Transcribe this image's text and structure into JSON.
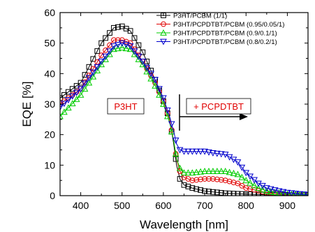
{
  "chart_data": {
    "type": "line",
    "xlabel": "Wavelength [nm]",
    "ylabel": "EQE [%]",
    "xlim": [
      350,
      950
    ],
    "ylim": [
      0,
      60
    ],
    "xticks": [
      400,
      500,
      600,
      700,
      800,
      900
    ],
    "yticks": [
      0,
      10,
      20,
      30,
      40,
      50,
      60
    ],
    "grid": false,
    "legend_position": "top-right",
    "annotations": [
      {
        "text": "P3HT",
        "color": "#e00000"
      },
      {
        "text": "+ PCPDTBT",
        "color": "#e00000"
      }
    ],
    "series": [
      {
        "name": "P3HT/PCBM (1/1)",
        "color": "#000000",
        "marker": "square",
        "x": [
          350,
          400,
          450,
          480,
          500,
          520,
          550,
          580,
          600,
          615,
          625,
          632,
          640,
          650,
          670,
          700,
          750,
          800,
          850,
          900,
          950
        ],
        "y": [
          32,
          37,
          50,
          55,
          55.5,
          54,
          47,
          38,
          31,
          25,
          17,
          10,
          5.5,
          3.5,
          2.5,
          1.5,
          0.8,
          0.5,
          0.3,
          0.2,
          0.1
        ]
      },
      {
        "name": "P3HT/PCPDTBT/PCBM (0.95/0.05/1)",
        "color": "#e00000",
        "marker": "circle",
        "x": [
          350,
          400,
          450,
          480,
          500,
          520,
          550,
          580,
          600,
          615,
          625,
          632,
          640,
          650,
          670,
          700,
          720,
          750,
          780,
          800,
          850,
          900,
          950
        ],
        "y": [
          30,
          35,
          46,
          51,
          51,
          50,
          44,
          37,
          31,
          25,
          18,
          12,
          8,
          6,
          5,
          5.5,
          5.5,
          5,
          4,
          2.5,
          1,
          0.3,
          0.1
        ]
      },
      {
        "name": "P3HT/PCPDTBT/PCBM (0.9/0.1/1)",
        "color": "#00cc00",
        "marker": "triangle-up",
        "x": [
          350,
          400,
          450,
          480,
          500,
          520,
          550,
          580,
          600,
          615,
          625,
          632,
          640,
          650,
          670,
          700,
          720,
          750,
          780,
          800,
          830,
          850,
          900,
          950
        ],
        "y": [
          26,
          33,
          43,
          48,
          48.5,
          48,
          43,
          36,
          30,
          24,
          18,
          12,
          9,
          7.5,
          7.5,
          8,
          8,
          8,
          7,
          5,
          2.5,
          1.5,
          0.5,
          0.2
        ]
      },
      {
        "name": "P3HT/PCPDTBT/PCBM (0.8/0.2/1)",
        "color": "#0000cc",
        "marker": "triangle-down",
        "x": [
          350,
          400,
          450,
          480,
          500,
          520,
          550,
          580,
          600,
          615,
          625,
          632,
          640,
          650,
          670,
          700,
          720,
          750,
          780,
          800,
          830,
          850,
          880,
          900,
          950
        ],
        "y": [
          29,
          35,
          44,
          49,
          50,
          49,
          44,
          38,
          32,
          26,
          21,
          17,
          15,
          14.5,
          14.5,
          14.5,
          14,
          13.5,
          11,
          7.5,
          4,
          2.5,
          1.5,
          1,
          0.3
        ]
      }
    ]
  }
}
